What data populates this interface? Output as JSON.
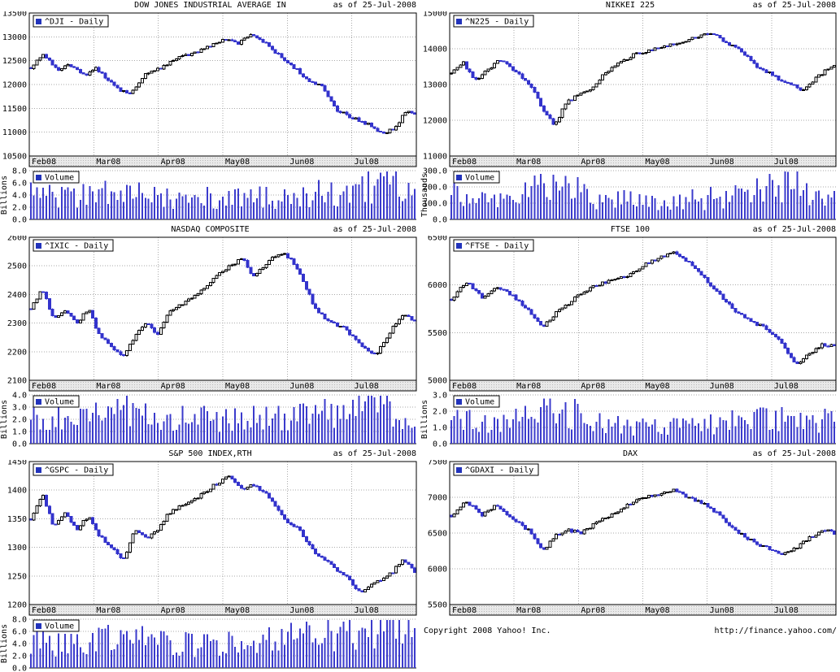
{
  "page": {
    "as_of": "as of 25-Jul-2008",
    "copyright": "Copyright 2008 Yahoo! Inc.",
    "url": "http://finance.yahoo.com/"
  },
  "colors": {
    "candle_down": "#3333cc",
    "candle_up_fill": "#ffffff",
    "outline": "#000000",
    "volume_bar": "#3b3bcc",
    "legend_square": "#2233bb",
    "grid": "#aaaaaa",
    "strip_bg": "#e9e9e9"
  },
  "chart_data": [
    {
      "type": "candlestick",
      "title": "DOW JONES INDUSTRIAL AVERAGE IN",
      "legend": "^DJI - Daily",
      "as_of": "as of 25-Jul-2008",
      "x_tick_labels": [
        "Feb08",
        "Mar08",
        "Apr08",
        "May08",
        "Jun08",
        "Jul08"
      ],
      "ylim": [
        10500,
        13500
      ],
      "yticks": [
        10500,
        11000,
        11500,
        12000,
        12500,
        13000,
        13500
      ],
      "price_points": [
        [
          0,
          12350
        ],
        [
          0.03,
          12650
        ],
        [
          0.07,
          12300
        ],
        [
          0.1,
          12400
        ],
        [
          0.14,
          12200
        ],
        [
          0.17,
          12350
        ],
        [
          0.2,
          12100
        ],
        [
          0.23,
          11900
        ],
        [
          0.26,
          11780
        ],
        [
          0.3,
          12250
        ],
        [
          0.34,
          12350
        ],
        [
          0.38,
          12550
        ],
        [
          0.42,
          12650
        ],
        [
          0.46,
          12800
        ],
        [
          0.5,
          12950
        ],
        [
          0.54,
          12850
        ],
        [
          0.57,
          13030
        ],
        [
          0.6,
          12950
        ],
        [
          0.64,
          12650
        ],
        [
          0.68,
          12400
        ],
        [
          0.72,
          12100
        ],
        [
          0.76,
          11950
        ],
        [
          0.8,
          11450
        ],
        [
          0.84,
          11300
        ],
        [
          0.88,
          11150
        ],
        [
          0.92,
          10980
        ],
        [
          0.95,
          11100
        ],
        [
          0.98,
          11480
        ],
        [
          1,
          11400
        ]
      ],
      "volume": {
        "legend": "Volume",
        "unit": "Billions",
        "ylim": [
          0,
          8
        ],
        "yticks": [
          0,
          2,
          4,
          6,
          8
        ],
        "points": [
          [
            0,
            4.8
          ],
          [
            0.08,
            3.6
          ],
          [
            0.16,
            4.2
          ],
          [
            0.24,
            4.6
          ],
          [
            0.32,
            4.0
          ],
          [
            0.4,
            3.8
          ],
          [
            0.48,
            3.4
          ],
          [
            0.56,
            3.6
          ],
          [
            0.64,
            3.9
          ],
          [
            0.72,
            4.2
          ],
          [
            0.8,
            4.6
          ],
          [
            0.88,
            5.6
          ],
          [
            0.94,
            6.8
          ],
          [
            1,
            5.5
          ]
        ]
      }
    },
    {
      "type": "candlestick",
      "title": "NIKKEI 225",
      "legend": "^N225 - Daily",
      "as_of": "as of 25-Jul-2008",
      "x_tick_labels": [
        "Feb08",
        "Mar08",
        "Apr08",
        "May08",
        "Jun08",
        "Jul08"
      ],
      "ylim": [
        11000,
        15000
      ],
      "yticks": [
        11000,
        12000,
        13000,
        14000,
        15000
      ],
      "price_points": [
        [
          0,
          13300
        ],
        [
          0.03,
          13650
        ],
        [
          0.06,
          13100
        ],
        [
          0.09,
          13350
        ],
        [
          0.12,
          13650
        ],
        [
          0.15,
          13550
        ],
        [
          0.18,
          13250
        ],
        [
          0.21,
          12950
        ],
        [
          0.24,
          12250
        ],
        [
          0.27,
          11850
        ],
        [
          0.3,
          12500
        ],
        [
          0.33,
          12700
        ],
        [
          0.36,
          12850
        ],
        [
          0.4,
          13300
        ],
        [
          0.44,
          13600
        ],
        [
          0.48,
          13850
        ],
        [
          0.52,
          13950
        ],
        [
          0.56,
          14100
        ],
        [
          0.6,
          14200
        ],
        [
          0.64,
          14300
        ],
        [
          0.68,
          14450
        ],
        [
          0.72,
          14150
        ],
        [
          0.76,
          13900
        ],
        [
          0.8,
          13500
        ],
        [
          0.84,
          13250
        ],
        [
          0.88,
          13000
        ],
        [
          0.92,
          12850
        ],
        [
          0.96,
          13250
        ],
        [
          1,
          13570
        ]
      ],
      "volume": {
        "legend": "Volume",
        "unit": "Thousands",
        "ylim": [
          0,
          300
        ],
        "yticks": [
          0,
          100,
          200,
          300
        ],
        "points": [
          [
            0,
            160
          ],
          [
            0.08,
            120
          ],
          [
            0.16,
            140
          ],
          [
            0.24,
            190
          ],
          [
            0.28,
            240
          ],
          [
            0.36,
            140
          ],
          [
            0.44,
            120
          ],
          [
            0.52,
            110
          ],
          [
            0.6,
            120
          ],
          [
            0.68,
            130
          ],
          [
            0.76,
            140
          ],
          [
            0.84,
            190
          ],
          [
            0.88,
            260
          ],
          [
            0.94,
            150
          ],
          [
            1,
            130
          ]
        ]
      }
    },
    {
      "type": "candlestick",
      "title": "NASDAQ COMPOSITE",
      "legend": "^IXIC - Daily",
      "as_of": "as of 25-Jul-2008",
      "x_tick_labels": [
        "Feb08",
        "Mar08",
        "Apr08",
        "May08",
        "Jun08",
        "Jul08"
      ],
      "ylim": [
        2100,
        2600
      ],
      "yticks": [
        2100,
        2200,
        2300,
        2400,
        2500,
        2600
      ],
      "price_points": [
        [
          0,
          2350
        ],
        [
          0.03,
          2420
        ],
        [
          0.06,
          2310
        ],
        [
          0.09,
          2350
        ],
        [
          0.12,
          2300
        ],
        [
          0.15,
          2350
        ],
        [
          0.18,
          2250
        ],
        [
          0.21,
          2220
        ],
        [
          0.24,
          2180
        ],
        [
          0.27,
          2250
        ],
        [
          0.3,
          2300
        ],
        [
          0.33,
          2260
        ],
        [
          0.36,
          2340
        ],
        [
          0.4,
          2370
        ],
        [
          0.44,
          2410
        ],
        [
          0.48,
          2460
        ],
        [
          0.52,
          2500
        ],
        [
          0.55,
          2530
        ],
        [
          0.58,
          2460
        ],
        [
          0.62,
          2520
        ],
        [
          0.66,
          2550
        ],
        [
          0.7,
          2480
        ],
        [
          0.74,
          2350
        ],
        [
          0.78,
          2300
        ],
        [
          0.82,
          2280
        ],
        [
          0.86,
          2220
        ],
        [
          0.9,
          2190
        ],
        [
          0.94,
          2280
        ],
        [
          0.97,
          2330
        ],
        [
          1,
          2310
        ]
      ],
      "volume": {
        "legend": "Volume",
        "unit": "Billions",
        "ylim": [
          0,
          4
        ],
        "yticks": [
          0,
          1,
          2,
          3,
          4
        ],
        "points": [
          [
            0,
            2.6
          ],
          [
            0.1,
            2.2
          ],
          [
            0.2,
            2.4
          ],
          [
            0.28,
            2.8
          ],
          [
            0.36,
            2.3
          ],
          [
            0.44,
            2.1
          ],
          [
            0.52,
            2.0
          ],
          [
            0.6,
            2.1
          ],
          [
            0.68,
            2.2
          ],
          [
            0.76,
            2.4
          ],
          [
            0.84,
            2.6
          ],
          [
            0.9,
            3.6
          ],
          [
            0.95,
            2.8
          ],
          [
            1,
            2.4
          ]
        ]
      }
    },
    {
      "type": "candlestick",
      "title": "FTSE 100",
      "legend": "^FTSE - Daily",
      "as_of": "as of 25-Jul-2008",
      "x_tick_labels": [
        "Feb08",
        "Mar08",
        "Apr08",
        "May08",
        "Jun08",
        "Jul08"
      ],
      "ylim": [
        5000,
        6500
      ],
      "yticks": [
        5000,
        5500,
        6000,
        6500
      ],
      "price_points": [
        [
          0,
          5850
        ],
        [
          0.04,
          6030
        ],
        [
          0.08,
          5870
        ],
        [
          0.12,
          5980
        ],
        [
          0.16,
          5890
        ],
        [
          0.2,
          5750
        ],
        [
          0.24,
          5550
        ],
        [
          0.27,
          5700
        ],
        [
          0.3,
          5780
        ],
        [
          0.34,
          5920
        ],
        [
          0.38,
          6000
        ],
        [
          0.42,
          6050
        ],
        [
          0.46,
          6090
        ],
        [
          0.5,
          6200
        ],
        [
          0.54,
          6280
        ],
        [
          0.58,
          6350
        ],
        [
          0.62,
          6230
        ],
        [
          0.66,
          6080
        ],
        [
          0.7,
          5900
        ],
        [
          0.74,
          5720
        ],
        [
          0.78,
          5620
        ],
        [
          0.82,
          5550
        ],
        [
          0.86,
          5400
        ],
        [
          0.9,
          5180
        ],
        [
          0.94,
          5280
        ],
        [
          0.97,
          5380
        ],
        [
          1,
          5350
        ]
      ],
      "volume": {
        "legend": "Volume",
        "unit": "Billions",
        "ylim": [
          0,
          3
        ],
        "yticks": [
          0,
          1,
          2,
          3
        ],
        "points": [
          [
            0,
            1.6
          ],
          [
            0.08,
            1.2
          ],
          [
            0.16,
            1.4
          ],
          [
            0.24,
            1.8
          ],
          [
            0.28,
            2.4
          ],
          [
            0.36,
            1.3
          ],
          [
            0.44,
            1.1
          ],
          [
            0.52,
            1.0
          ],
          [
            0.6,
            1.1
          ],
          [
            0.68,
            1.2
          ],
          [
            0.76,
            1.4
          ],
          [
            0.84,
            1.5
          ],
          [
            0.9,
            1.7
          ],
          [
            0.95,
            1.5
          ],
          [
            1,
            1.3
          ]
        ]
      }
    },
    {
      "type": "candlestick",
      "title": "S&P 500 INDEX,RTH",
      "legend": "^GSPC - Daily",
      "as_of": "as of 25-Jul-2008",
      "x_tick_labels": [
        "Feb08",
        "Mar08",
        "Apr08",
        "May08",
        "Jun08",
        "Jul08"
      ],
      "ylim": [
        1200,
        1450
      ],
      "yticks": [
        1200,
        1250,
        1300,
        1350,
        1400,
        1450
      ],
      "price_points": [
        [
          0,
          1350
        ],
        [
          0.03,
          1395
        ],
        [
          0.06,
          1335
        ],
        [
          0.09,
          1360
        ],
        [
          0.12,
          1330
        ],
        [
          0.15,
          1355
        ],
        [
          0.18,
          1320
        ],
        [
          0.21,
          1300
        ],
        [
          0.24,
          1275
        ],
        [
          0.27,
          1330
        ],
        [
          0.3,
          1315
        ],
        [
          0.33,
          1330
        ],
        [
          0.36,
          1360
        ],
        [
          0.4,
          1375
        ],
        [
          0.44,
          1390
        ],
        [
          0.48,
          1410
        ],
        [
          0.52,
          1425
        ],
        [
          0.55,
          1400
        ],
        [
          0.58,
          1410
        ],
        [
          0.62,
          1390
        ],
        [
          0.66,
          1350
        ],
        [
          0.7,
          1330
        ],
        [
          0.74,
          1290
        ],
        [
          0.78,
          1270
        ],
        [
          0.82,
          1250
        ],
        [
          0.86,
          1220
        ],
        [
          0.9,
          1240
        ],
        [
          0.94,
          1255
        ],
        [
          0.97,
          1280
        ],
        [
          1,
          1257
        ]
      ],
      "volume": {
        "legend": "Volume",
        "unit": "Billions",
        "ylim": [
          0,
          8
        ],
        "yticks": [
          0,
          2,
          4,
          6,
          8
        ],
        "points": [
          [
            0,
            4.2
          ],
          [
            0.08,
            3.8
          ],
          [
            0.16,
            4.4
          ],
          [
            0.24,
            5.0
          ],
          [
            0.32,
            4.4
          ],
          [
            0.4,
            4.0
          ],
          [
            0.48,
            3.8
          ],
          [
            0.56,
            4.2
          ],
          [
            0.64,
            4.6
          ],
          [
            0.72,
            5.0
          ],
          [
            0.8,
            5.4
          ],
          [
            0.88,
            6.6
          ],
          [
            0.94,
            7.4
          ],
          [
            1,
            5.2
          ]
        ]
      }
    },
    {
      "type": "candlestick",
      "title": "DAX",
      "legend": "^GDAXI - Daily",
      "as_of": "as of 25-Jul-2008",
      "x_tick_labels": [
        "Feb08",
        "Mar08",
        "Apr08",
        "May08",
        "Jun08",
        "Jul08"
      ],
      "ylim": [
        5500,
        7500
      ],
      "yticks": [
        5500,
        6000,
        6500,
        7000,
        7500
      ],
      "price_points": [
        [
          0,
          6750
        ],
        [
          0.04,
          6950
        ],
        [
          0.08,
          6750
        ],
        [
          0.12,
          6900
        ],
        [
          0.16,
          6700
        ],
        [
          0.2,
          6550
        ],
        [
          0.24,
          6250
        ],
        [
          0.27,
          6450
        ],
        [
          0.3,
          6550
        ],
        [
          0.34,
          6500
        ],
        [
          0.38,
          6650
        ],
        [
          0.42,
          6750
        ],
        [
          0.46,
          6900
        ],
        [
          0.5,
          7000
        ],
        [
          0.54,
          7050
        ],
        [
          0.58,
          7100
        ],
        [
          0.62,
          7000
        ],
        [
          0.66,
          6900
        ],
        [
          0.7,
          6750
        ],
        [
          0.74,
          6550
        ],
        [
          0.78,
          6400
        ],
        [
          0.82,
          6300
        ],
        [
          0.86,
          6200
        ],
        [
          0.9,
          6300
        ],
        [
          0.94,
          6450
        ],
        [
          0.97,
          6550
        ],
        [
          1,
          6500
        ]
      ],
      "volume": null
    }
  ]
}
